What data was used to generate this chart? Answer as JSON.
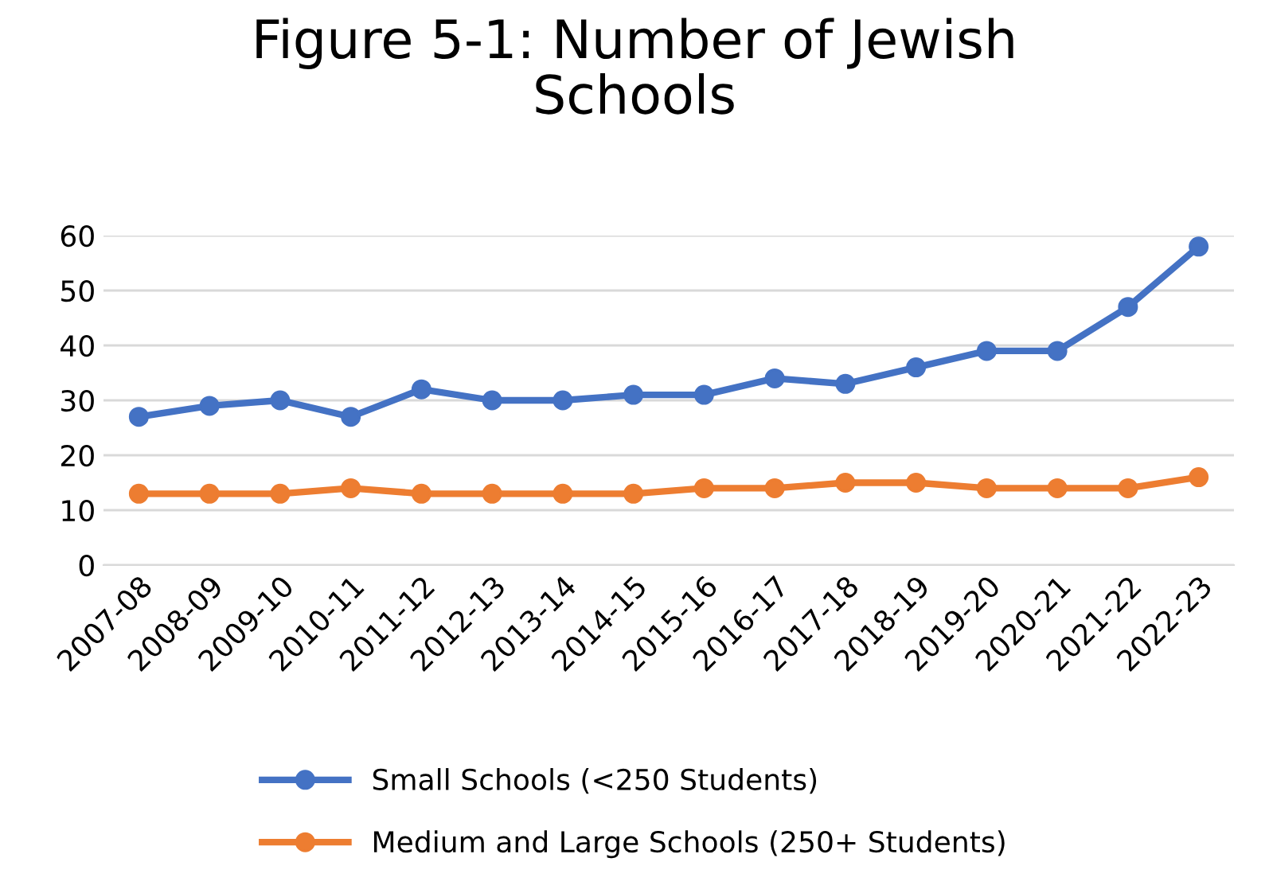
{
  "chart_data": {
    "type": "line",
    "title": "Figure 5-1: Number of Jewish\nSchools",
    "categories": [
      "2007-08",
      "2008-09",
      "2009-10",
      "2010-11",
      "2011-12",
      "2012-13",
      "2013-14",
      "2014-15",
      "2015-16",
      "2016-17",
      "2017-18",
      "2018-19",
      "2019-20",
      "2020-21",
      "2021-22",
      "2022-23"
    ],
    "series": [
      {
        "name": "Small Schools (<250 Students)",
        "color": "#4472c4",
        "values": [
          27,
          29,
          30,
          27,
          32,
          30,
          30,
          31,
          31,
          34,
          33,
          36,
          39,
          39,
          47,
          58
        ]
      },
      {
        "name": "Medium and Large Schools (250+ Students)",
        "color": "#ed7d31",
        "values": [
          13,
          13,
          13,
          14,
          13,
          13,
          13,
          13,
          14,
          14,
          15,
          15,
          14,
          14,
          14,
          16
        ]
      }
    ],
    "ylim": [
      0,
      60
    ],
    "yticks": [
      0,
      10,
      20,
      30,
      40,
      50,
      60
    ],
    "grid": "y",
    "legend": "bottom",
    "marker": "circle",
    "line_style": "solid"
  }
}
